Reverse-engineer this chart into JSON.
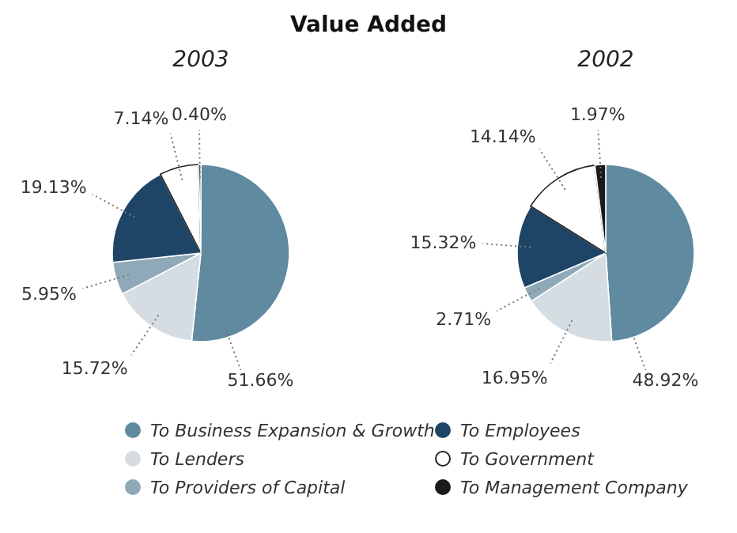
{
  "chart_data": {
    "type": "pie",
    "title": "Value Added",
    "categories": [
      "To Business Expansion & Growth",
      "To Lenders",
      "To Providers of Capital",
      "To Employees",
      "To Government",
      "To Management Company"
    ],
    "colors": [
      "#5f8aa0",
      "#d5dde2",
      "#8fa9b9",
      "#1e4566",
      "#ffffff",
      "#1a1a1a"
    ],
    "series": [
      {
        "name": "2003",
        "values": [
          51.66,
          15.72,
          5.95,
          19.13,
          7.14,
          0.4
        ],
        "value_labels": [
          "51.66%",
          "15.72%",
          "5.95%",
          "19.13%",
          "7.14%",
          "0.40%"
        ]
      },
      {
        "name": "2002",
        "values": [
          48.92,
          16.95,
          2.71,
          15.32,
          14.14,
          1.97
        ],
        "value_labels": [
          "48.92%",
          "16.95%",
          "2.71%",
          "15.32%",
          "14.14%",
          "1.97%"
        ]
      }
    ],
    "legend": "bottom"
  }
}
